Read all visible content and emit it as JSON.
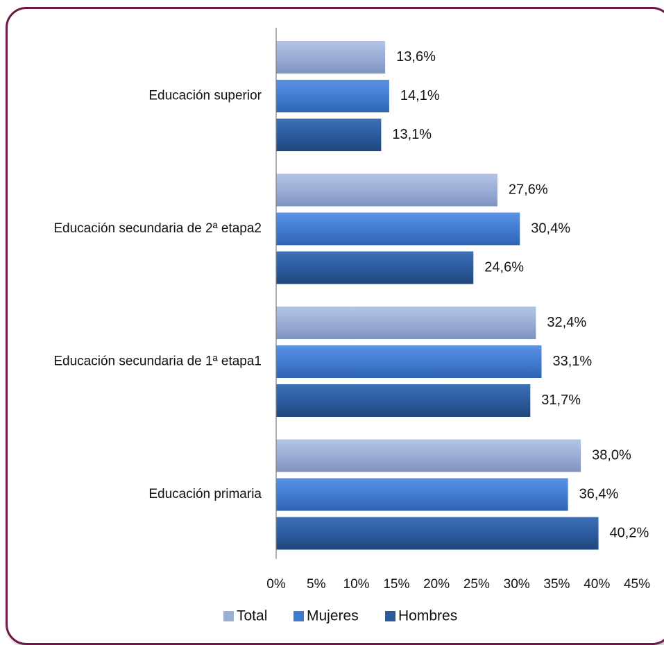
{
  "chart_data": {
    "type": "bar",
    "orientation": "horizontal",
    "categories": [
      "Educación superior",
      "Educación secundaria de 2ª etapa2",
      "Educación secundaria de 1ª etapa1",
      "Educación primaria"
    ],
    "series": [
      {
        "name": "Total",
        "color": "#9aaed6",
        "values": [
          13.6,
          27.6,
          32.4,
          38.0
        ],
        "labels": [
          "13,6%",
          "27,6%",
          "32,4%",
          "38,0%"
        ]
      },
      {
        "name": "Mujeres",
        "color": "#3f7ad0",
        "values": [
          14.1,
          30.4,
          33.1,
          36.4
        ],
        "labels": [
          "14,1%",
          "30,4%",
          "33,1%",
          "36,4%"
        ]
      },
      {
        "name": "Hombres",
        "color": "#2a5a9c",
        "values": [
          13.1,
          24.6,
          31.7,
          40.2
        ],
        "labels": [
          "13,1%",
          "24,6%",
          "31,7%",
          "40,2%"
        ]
      }
    ],
    "x_ticks": [
      "0%",
      "5%",
      "10%",
      "15%",
      "20%",
      "25%",
      "30%",
      "35%",
      "40%",
      "45%"
    ],
    "xlim": [
      0,
      45
    ],
    "xlabel": "",
    "ylabel": "",
    "grid": false,
    "legend_position": "bottom"
  }
}
